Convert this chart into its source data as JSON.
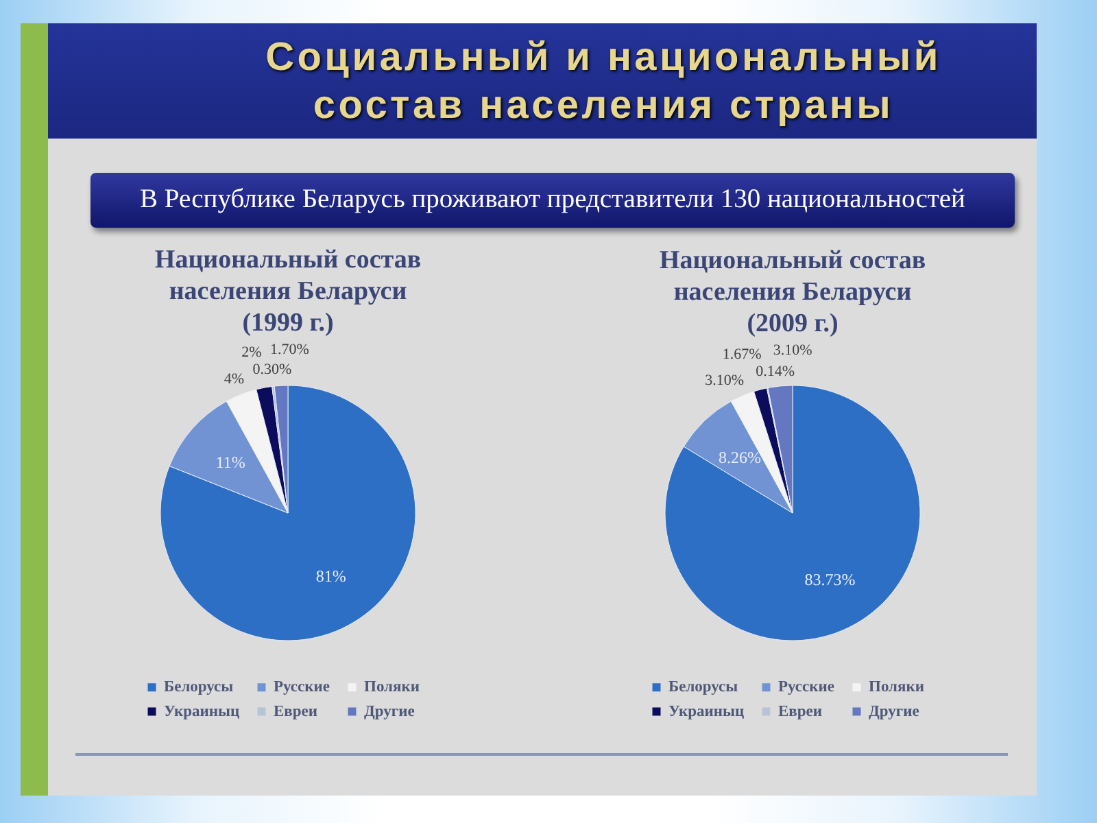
{
  "chart_data": [
    {
      "type": "other",
      "title": "Социальный и национальный состав населения страны",
      "annotations": [
        "В Республике Беларусь проживают представители 130 национальностей"
      ]
    },
    {
      "type": "pie",
      "title": "Национальный состав населения Беларуси (1999 г.)",
      "categories": [
        "Белорусы",
        "Русские",
        "Поляки",
        "Украиныц",
        "Евреи",
        "Другие"
      ],
      "values": [
        81,
        11,
        4,
        2,
        0.3,
        1.7
      ],
      "value_labels": [
        "81%",
        "11%",
        "4%",
        "2%",
        "0.30%",
        "1.70%"
      ],
      "colors": [
        "#2e6fc6",
        "#7193d4",
        "#f4f4f4",
        "#0b0d5c",
        "#b9c3d6",
        "#6478c2"
      ],
      "legend": "bottom"
    },
    {
      "type": "pie",
      "title": "Национальный состав населения Беларуси (2009 г.)",
      "categories": [
        "Белорусы",
        "Русские",
        "Поляки",
        "Украиныц",
        "Евреи",
        "Другие"
      ],
      "values": [
        83.73,
        8.26,
        3.1,
        1.67,
        0.14,
        3.1
      ],
      "value_labels": [
        "83.73%",
        "8.26%",
        "3.10%",
        "1.67%",
        "0.14%",
        "3.10%"
      ],
      "colors": [
        "#2e6fc6",
        "#7193d4",
        "#f4f4f4",
        "#0b0d5c",
        "#b9c3d6",
        "#6478c2"
      ],
      "legend": "bottom"
    }
  ]
}
